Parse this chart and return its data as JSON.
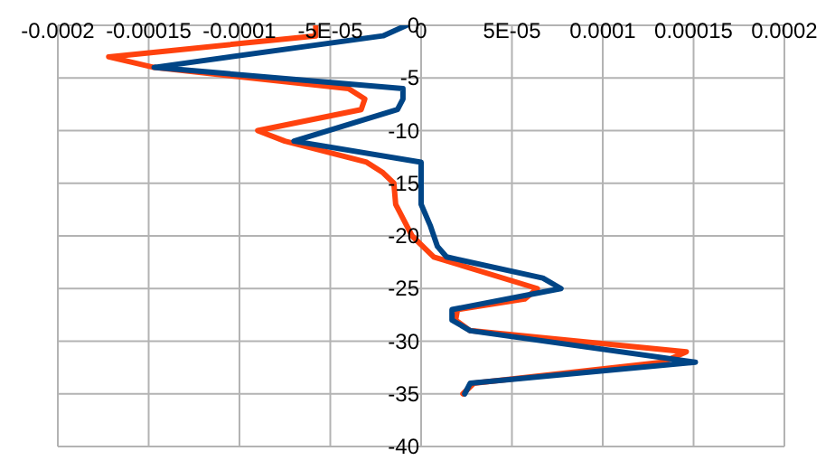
{
  "chart_data": {
    "type": "line",
    "xlim": [
      -0.0002,
      0.0002
    ],
    "xticks": [
      -0.0002,
      -0.00015,
      -0.0001,
      {
        "value": -5e-05,
        "label": "-5E-05"
      },
      0,
      {
        "value": 5e-05,
        "label": "5E-05"
      },
      0.0001,
      0.00015,
      0.0002
    ],
    "ylim": [
      -40,
      0
    ],
    "yticks": [
      0,
      -5,
      -10,
      -15,
      -20,
      -25,
      -30,
      -35,
      -40
    ],
    "grid": true,
    "marker": "none",
    "line_style": "solid",
    "series": [
      {
        "color": "#ff420e",
        "x": [
          -5.8e-05,
          -5.8e-05,
          -0.000172,
          -0.000147,
          -4e-05,
          -3.1e-05,
          -3.3e-05,
          -9e-05,
          -7.5e-05,
          -3e-05,
          -2.1e-05,
          -1.5e-05,
          -1.4e-05,
          -5e-06,
          7e-06,
          6.4e-05,
          5.7e-05,
          2e-05,
          1.9e-05,
          2.7e-05,
          0.000146,
          0.000133,
          2.9e-05,
          2.3e-05
        ],
        "values": [
          0,
          -1,
          -3,
          -4,
          -6,
          -7,
          -8,
          -10,
          -11,
          -13,
          -14,
          -15,
          -17,
          -20,
          -22,
          -25,
          -26,
          -27,
          -28,
          -29,
          -31,
          -32,
          -34,
          -35
        ]
      },
      {
        "color": "#004586",
        "x": [
          -8e-06,
          -2.1e-05,
          -0.000147,
          -1e-05,
          -1e-05,
          -1.3e-05,
          -7e-05,
          0,
          0,
          5e-06,
          9e-06,
          1.4e-05,
          6.7e-05,
          7.7e-05,
          1.7e-05,
          1.7e-05,
          2.7e-05,
          0.000151,
          2.7e-05,
          2.4e-05
        ],
        "values": [
          0,
          -1,
          -4,
          -6,
          -7,
          -8,
          -11,
          -13,
          -17,
          -19,
          -21,
          -22,
          -24,
          -25,
          -27,
          -28,
          -29,
          -32,
          -34,
          -35
        ]
      }
    ]
  }
}
